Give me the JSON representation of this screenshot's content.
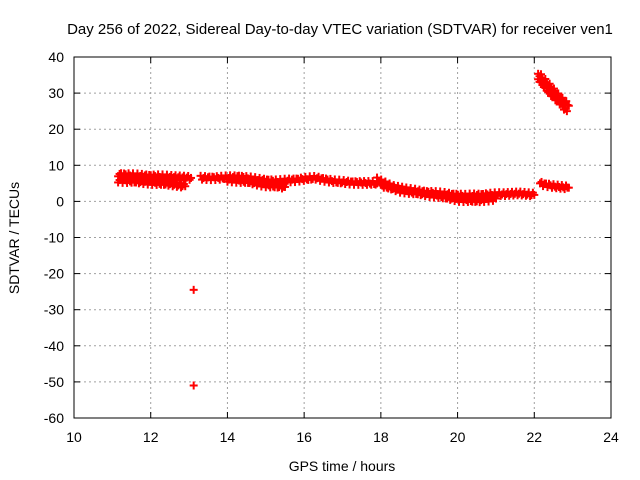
{
  "chart_data": {
    "type": "scatter",
    "title": "Day 256 of 2022, Sidereal Day-to-day VTEC variation (SDTVAR) for receiver ven1",
    "xlabel": "GPS time / hours",
    "ylabel": "SDTVAR / TECUs",
    "xlim": [
      10,
      24
    ],
    "ylim": [
      -60,
      40
    ],
    "xticks": [
      "10",
      "12",
      "14",
      "16",
      "18",
      "20",
      "22",
      "24"
    ],
    "yticks": [
      "40",
      "30",
      "20",
      "10",
      "0",
      "-10",
      "-20",
      "-30",
      "-40",
      "-50",
      "-60"
    ],
    "grid": true,
    "marker": "plus",
    "color": "#ff0000",
    "segments": [
      {
        "x": [
          11.15,
          11.5,
          12.0,
          12.5,
          13.05
        ],
        "y": [
          7.5,
          7.2,
          7.0,
          6.8,
          6.5
        ]
      },
      {
        "x": [
          11.15,
          11.5,
          12.0,
          12.5,
          12.9
        ],
        "y": [
          5.8,
          5.6,
          5.2,
          4.8,
          4.2
        ]
      },
      {
        "x": [
          13.3,
          13.8,
          14.3,
          14.8,
          15.3,
          15.8,
          16.3,
          16.8,
          17.3,
          17.9
        ],
        "y": [
          6.5,
          6.5,
          6.8,
          6.0,
          5.5,
          6.0,
          6.5,
          5.5,
          5.2,
          5.0
        ]
      },
      {
        "x": [
          14.0,
          14.5,
          15.0,
          15.5
        ],
        "y": [
          6.0,
          5.5,
          4.5,
          4.0
        ]
      },
      {
        "x": [
          17.9,
          18.3,
          18.7,
          19.2,
          19.7,
          20.2,
          20.7,
          21.2,
          21.6,
          22.0
        ],
        "y": [
          6.0,
          4.0,
          3.2,
          2.5,
          2.0,
          1.5,
          1.8,
          2.0,
          2.2,
          1.8
        ]
      },
      {
        "x": [
          18.0,
          18.5,
          19.0,
          19.5,
          20.0,
          20.5,
          21.0
        ],
        "y": [
          4.5,
          3.0,
          2.2,
          1.5,
          0.5,
          0.2,
          0.8
        ]
      },
      {
        "x": [
          22.15,
          22.5,
          22.9
        ],
        "y": [
          5.0,
          4.2,
          3.8
        ]
      },
      {
        "x": [
          22.1,
          22.4,
          22.7,
          22.9
        ],
        "y": [
          35.5,
          32.0,
          28.5,
          26.5
        ]
      },
      {
        "x": [
          22.1,
          22.4,
          22.7,
          22.85
        ],
        "y": [
          34.0,
          30.0,
          27.0,
          25.0
        ]
      }
    ],
    "outliers": [
      {
        "x": 13.12,
        "y": -24.5
      },
      {
        "x": 13.12,
        "y": -51.0
      }
    ]
  }
}
